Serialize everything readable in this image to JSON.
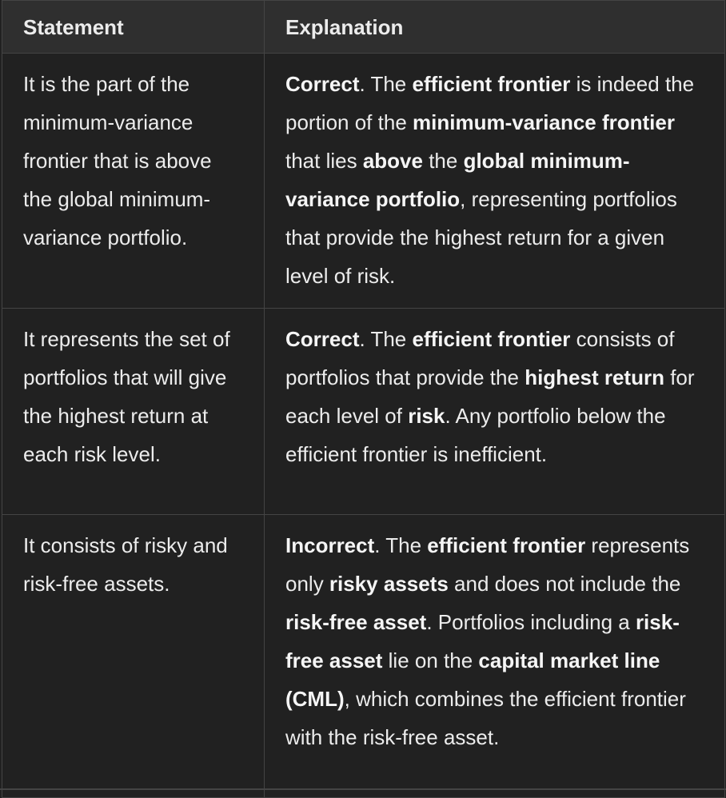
{
  "table": {
    "headers": [
      "Statement",
      "Explanation"
    ],
    "rows": [
      {
        "statement": "It is the part of the minimum-variance frontier that is above the global minimum-variance portfolio.",
        "explanation": [
          {
            "text": "Correct",
            "bold": true
          },
          {
            "text": ". The ",
            "bold": false
          },
          {
            "text": "efficient frontier",
            "bold": true
          },
          {
            "text": " is indeed the portion of the ",
            "bold": false
          },
          {
            "text": "minimum-variance frontier",
            "bold": true
          },
          {
            "text": " that lies ",
            "bold": false
          },
          {
            "text": "above",
            "bold": true
          },
          {
            "text": " the ",
            "bold": false
          },
          {
            "text": "global minimum-variance portfolio",
            "bold": true
          },
          {
            "text": ", representing portfolios that provide the highest return for a given level of risk.",
            "bold": false
          }
        ]
      },
      {
        "statement": "It represents the set of portfolios that will give the highest return at each risk level.",
        "explanation": [
          {
            "text": "Correct",
            "bold": true
          },
          {
            "text": ". The ",
            "bold": false
          },
          {
            "text": "efficient frontier",
            "bold": true
          },
          {
            "text": " consists of portfolios that provide the ",
            "bold": false
          },
          {
            "text": "highest return",
            "bold": true
          },
          {
            "text": " for each level of ",
            "bold": false
          },
          {
            "text": "risk",
            "bold": true
          },
          {
            "text": ". Any portfolio below the efficient frontier is inefficient.",
            "bold": false
          }
        ]
      },
      {
        "statement": "It consists of risky and risk-free assets.",
        "explanation": [
          {
            "text": "Incorrect",
            "bold": true
          },
          {
            "text": ". The ",
            "bold": false
          },
          {
            "text": "efficient frontier",
            "bold": true
          },
          {
            "text": " represents only ",
            "bold": false
          },
          {
            "text": "risky assets",
            "bold": true
          },
          {
            "text": " and does not include the ",
            "bold": false
          },
          {
            "text": "risk-free asset",
            "bold": true
          },
          {
            "text": ". Portfolios including a ",
            "bold": false
          },
          {
            "text": "risk-free asset",
            "bold": true
          },
          {
            "text": " lie on the ",
            "bold": false
          },
          {
            "text": "capital market line (CML)",
            "bold": true
          },
          {
            "text": ", which combines the efficient frontier with the risk-free asset.",
            "bold": false
          }
        ]
      }
    ]
  }
}
